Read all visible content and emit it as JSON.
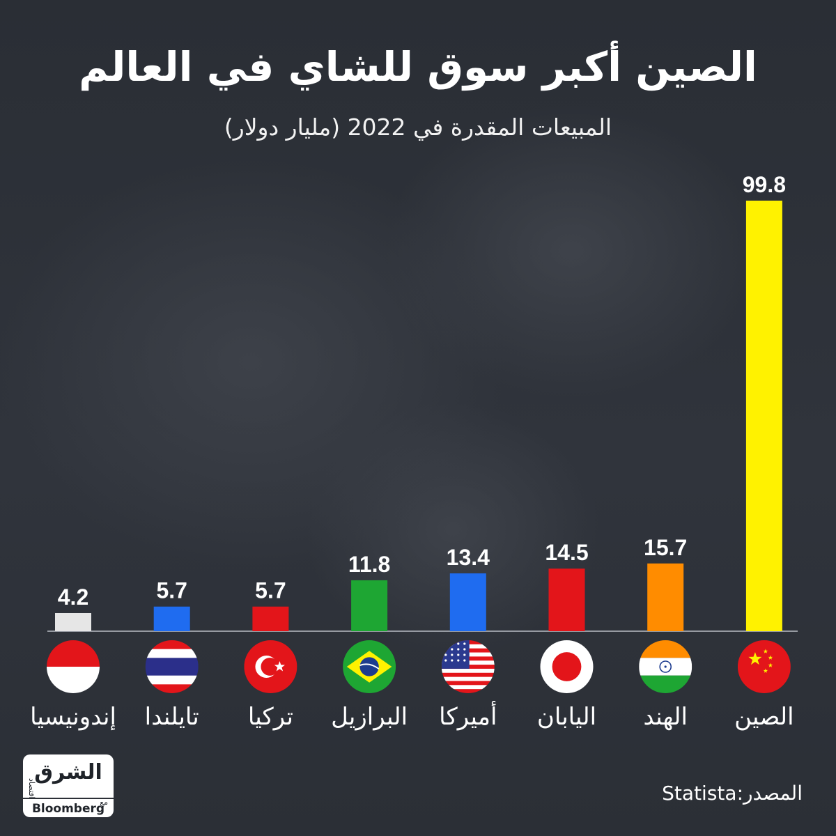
{
  "header": {
    "title": "الصين أكبر سوق للشاي في العالم",
    "subtitle": "المبيعات المقدرة في 2022 (مليار دولار)"
  },
  "chart_data": {
    "type": "bar",
    "title": "الصين أكبر سوق للشاي في العالم",
    "subtitle": "المبيعات المقدرة في 2022 (مليار دولار)",
    "categories": [
      "إندونيسيا",
      "تايلندا",
      "تركيا",
      "البرازيل",
      "أميركا",
      "اليابان",
      "الهند",
      "الصين"
    ],
    "values": [
      4.2,
      5.7,
      5.7,
      11.8,
      13.4,
      14.5,
      15.7,
      99.8
    ],
    "value_labels": [
      "4.2",
      "5.7",
      "5.7",
      "11.8",
      "13.4",
      "14.5",
      "15.7",
      "99.8"
    ],
    "bar_colors": [
      "#e6e6e6",
      "#1f6cf0",
      "#e3151a",
      "#1ea633",
      "#1f6cf0",
      "#e3151a",
      "#ff8c00",
      "#fff200"
    ],
    "flags": [
      "indonesia-flag",
      "thailand-flag",
      "turkey-flag",
      "brazil-flag",
      "usa-flag",
      "japan-flag",
      "india-flag",
      "china-flag"
    ],
    "ylim": [
      0,
      100
    ],
    "grid": false,
    "legend": "none"
  },
  "source": {
    "label": "المصدر:",
    "value": "Statista"
  },
  "logo": {
    "main": "الشرق",
    "sub": "اقتصاد",
    "with": "مع",
    "partner": "Bloomberg"
  }
}
